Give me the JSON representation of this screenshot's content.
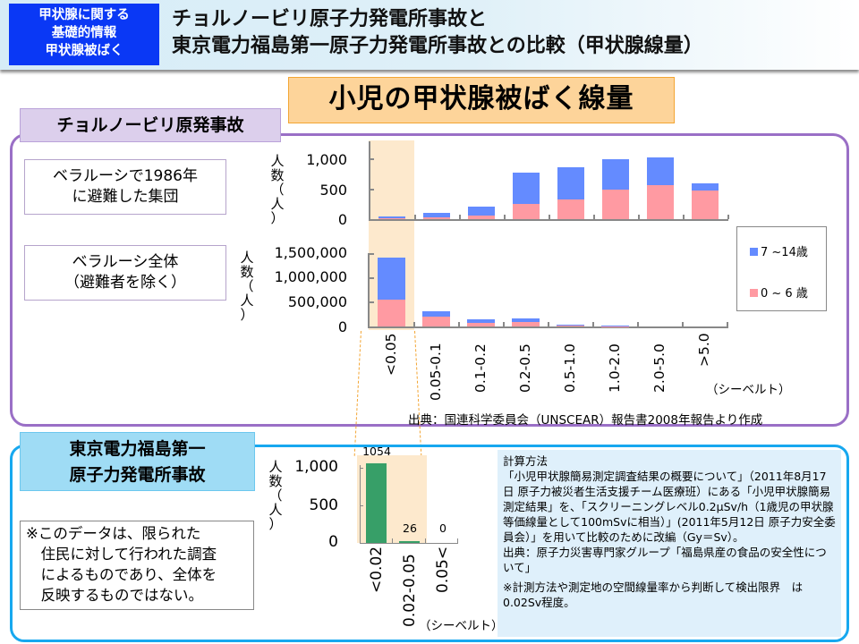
{
  "header": {
    "badge_lines": [
      "甲状腺に関する",
      "基礎的情報",
      "甲状腺被ばく"
    ],
    "title_lines": [
      "チョルノービリ原子力発電所事故と",
      "東京電力福島第一原子力発電所事故との比較（甲状腺線量）"
    ]
  },
  "main_title": "小児の甲状腺被ばく線量",
  "chernobyl": {
    "section_label": "チョルノービリ原発事故",
    "caption_top": [
      "ベラルーシで1986年",
      "に避難した集団"
    ],
    "caption_bottom": [
      "ベラルーシ全体",
      "（避難者を除く）"
    ],
    "ylabel_chars": [
      "人",
      "数",
      "（",
      "人",
      "）"
    ],
    "top_ticks": [
      "1,000",
      "500",
      "0"
    ],
    "bottom_ticks": [
      "1,500,000",
      "1,000,000",
      "500,000",
      "0"
    ],
    "x_labels": [
      "<0.05",
      "0.05-0.1",
      "0.1-0.2",
      "0.2-0.5",
      "0.5-1.0",
      "1.0-2.0",
      "2.0-5.0",
      ">5.0"
    ],
    "unit": "（シーベルト）",
    "legend": [
      {
        "label": "7 ~14歳",
        "color": "#648bff"
      },
      {
        "label": "0 ~ 6 歳",
        "color": "#ff9aa2"
      }
    ],
    "source": "出典：国連科学委員会（UNSCEAR）報告書2008年報告より作成"
  },
  "fukushima": {
    "section_label": [
      "東京電力福島第一",
      "原子力発電所事故"
    ],
    "note": "※このデータは、限られた\n　住民に対して行われた調査\n　によるものであり、全体を\n　反映するものではない。",
    "ylabel_chars": [
      "人",
      "数",
      "（",
      "人",
      "）"
    ],
    "ticks": [
      "1,000",
      "500",
      "0"
    ],
    "x_labels": [
      "<0.02",
      "0.02-0.05",
      "0.05<"
    ],
    "value_labels": [
      "1054",
      "26",
      "0"
    ],
    "unit": "（シーベルト）",
    "calc": {
      "heading": "計算方法",
      "body": "「小児甲状腺簡易測定調査結果の概要について」（2011年8月17日 原子力被災者生活支援チーム医療班）にある「小児甲状腺簡易測定結果」を、「スクリーニングレベル0.2μSv/h（1歳児の甲状腺等価線量として100mSvに相当）」(2011年5月12日 原子力安全委員会）」を用いて比較のために改編（Gy＝Sv）。",
      "source": "出典：原子力災害専門家グループ「福島県産の食品の安全性について」",
      "footnote": "※計測方法や測定地の空間線量率から判断して検出限界　は0.02Sv程度。"
    }
  },
  "colors": {
    "badge_bg": "#0a38f5",
    "title_bg": "#fdd49a",
    "chernobyl_frame": "#9a6fc6",
    "fukushima_frame": "#17a8ef",
    "age_7_14": "#648bff",
    "age_0_6": "#ff9aa2",
    "fukushima_bar": "#379f68",
    "highlight": "#fde9cd"
  },
  "chart_data": [
    {
      "type": "bar",
      "stacked": true,
      "title": "ベラルーシで1986年に避難した集団",
      "xlabel": "（シーベルト）",
      "ylabel": "人数（人）",
      "categories": [
        "<0.05",
        "0.05-0.1",
        "0.1-0.2",
        "0.2-0.5",
        "0.5-1.0",
        "1.0-2.0",
        "2.0-5.0",
        ">5.0"
      ],
      "series": [
        {
          "name": "0～6歳",
          "values": [
            10,
            30,
            60,
            260,
            325,
            490,
            560,
            475
          ]
        },
        {
          "name": "7～14歳",
          "values": [
            30,
            70,
            155,
            510,
            545,
            510,
            470,
            115
          ]
        }
      ],
      "ylim": [
        0,
        1000
      ],
      "yticks": [
        0,
        500,
        1000
      ],
      "highlight_category": "<0.05"
    },
    {
      "type": "bar",
      "stacked": true,
      "title": "ベラルーシ全体（避難者を除く）",
      "xlabel": "（シーベルト）",
      "ylabel": "人数（人）",
      "categories": [
        "<0.05",
        "0.05-0.1",
        "0.1-0.2",
        "0.2-0.5",
        "0.5-1.0",
        "1.0-2.0",
        "2.0-5.0",
        ">5.0"
      ],
      "series": [
        {
          "name": "0～6歳",
          "values": [
            555000,
            205000,
            75000,
            95000,
            25000,
            5000,
            0,
            0
          ]
        },
        {
          "name": "7～14歳",
          "values": [
            845000,
            110000,
            75000,
            75000,
            10000,
            15000,
            0,
            0
          ]
        }
      ],
      "ylim": [
        0,
        1500000
      ],
      "yticks": [
        0,
        500000,
        1000000,
        1500000
      ],
      "legend": [
        "7～14歳",
        "0～6歳"
      ],
      "legend_position": "right",
      "highlight_category": "<0.05"
    },
    {
      "type": "bar",
      "title": "東京電力福島第一原子力発電所事故",
      "xlabel": "（シーベルト）",
      "ylabel": "人数（人）",
      "categories": [
        "<0.02",
        "0.02-0.05",
        "0.05<"
      ],
      "values": [
        1054,
        26,
        0
      ],
      "data_labels": [
        "1054",
        "26",
        "0"
      ],
      "ylim": [
        0,
        1000
      ],
      "yticks": [
        0,
        500,
        1000
      ]
    }
  ]
}
